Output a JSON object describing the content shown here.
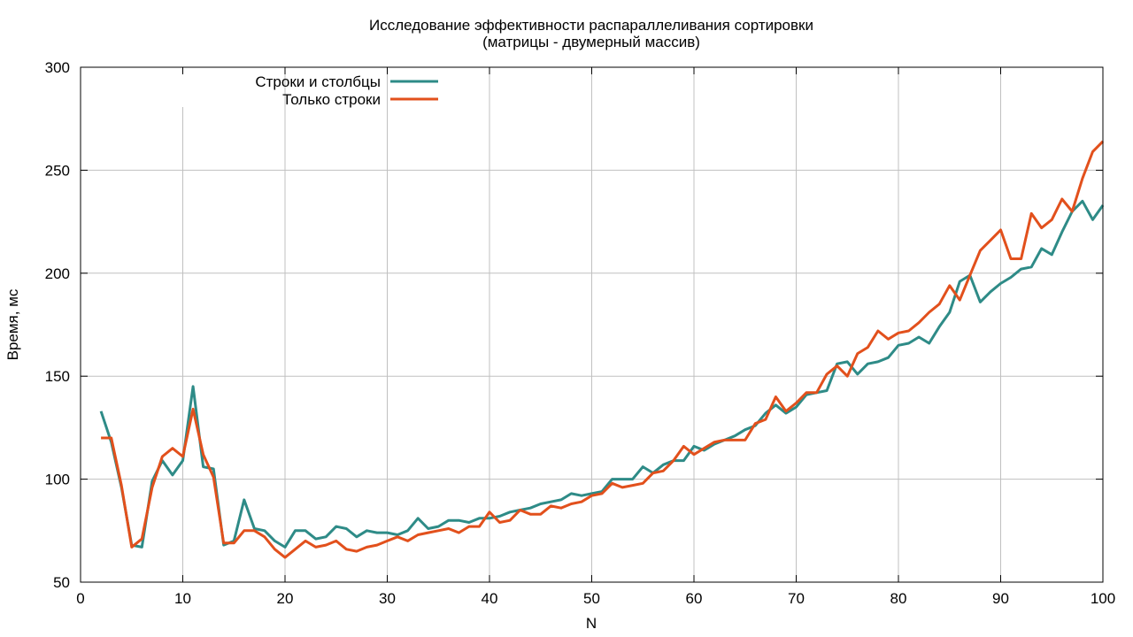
{
  "chart_data": {
    "type": "line",
    "title": "Исследование эффективности распараллеливания сортировки",
    "subtitle": "(матрицы - двумерный массив)",
    "xlabel": "N",
    "ylabel": "Время, мс",
    "xlim": [
      0,
      100
    ],
    "ylim": [
      50,
      300
    ],
    "xticks": [
      0,
      10,
      20,
      30,
      40,
      50,
      60,
      70,
      80,
      90,
      100
    ],
    "yticks": [
      50,
      100,
      150,
      200,
      250,
      300
    ],
    "grid": true,
    "legend_position": "top-left",
    "series": [
      {
        "name": "Строки и столбцы",
        "color": "#2e8b87",
        "x": [
          2,
          3,
          4,
          5,
          6,
          7,
          8,
          9,
          10,
          11,
          12,
          13,
          14,
          15,
          16,
          17,
          18,
          19,
          20,
          21,
          22,
          23,
          24,
          25,
          26,
          27,
          28,
          29,
          30,
          31,
          32,
          33,
          34,
          35,
          36,
          37,
          38,
          39,
          40,
          41,
          42,
          43,
          44,
          45,
          46,
          47,
          48,
          49,
          50,
          51,
          52,
          53,
          54,
          55,
          56,
          57,
          58,
          59,
          60,
          61,
          62,
          63,
          64,
          65,
          66,
          67,
          68,
          69,
          70,
          71,
          72,
          73,
          74,
          75,
          76,
          77,
          78,
          79,
          80,
          81,
          82,
          83,
          84,
          85,
          86,
          87,
          88,
          89,
          90,
          91,
          92,
          93,
          94,
          95,
          96,
          97,
          98,
          99,
          100
        ],
        "y": [
          133,
          118,
          96,
          68,
          67,
          99,
          109,
          102,
          109,
          145,
          106,
          105,
          68,
          70,
          90,
          76,
          75,
          70,
          67,
          75,
          75,
          71,
          72,
          77,
          76,
          72,
          75,
          74,
          74,
          73,
          75,
          81,
          76,
          77,
          80,
          80,
          79,
          81,
          81,
          82,
          84,
          85,
          86,
          88,
          89,
          90,
          93,
          92,
          93,
          94,
          100,
          100,
          100,
          106,
          103,
          107,
          109,
          109,
          116,
          114,
          117,
          119,
          121,
          124,
          126,
          132,
          136,
          132,
          135,
          141,
          142,
          143,
          156,
          157,
          151,
          156,
          157,
          159,
          165,
          166,
          169,
          166,
          174,
          181,
          196,
          199,
          186,
          191,
          195,
          198,
          202,
          203,
          212,
          209,
          220,
          230,
          235,
          226,
          233
        ]
      },
      {
        "name": "Только строки",
        "color": "#e2501c",
        "x": [
          2,
          3,
          4,
          5,
          6,
          7,
          8,
          9,
          10,
          11,
          12,
          13,
          14,
          15,
          16,
          17,
          18,
          19,
          20,
          21,
          22,
          23,
          24,
          25,
          26,
          27,
          28,
          29,
          30,
          31,
          32,
          33,
          34,
          35,
          36,
          37,
          38,
          39,
          40,
          41,
          42,
          43,
          44,
          45,
          46,
          47,
          48,
          49,
          50,
          51,
          52,
          53,
          54,
          55,
          56,
          57,
          58,
          59,
          60,
          61,
          62,
          63,
          64,
          65,
          66,
          67,
          68,
          69,
          70,
          71,
          72,
          73,
          74,
          75,
          76,
          77,
          78,
          79,
          80,
          81,
          82,
          83,
          84,
          85,
          86,
          87,
          88,
          89,
          90,
          91,
          92,
          93,
          94,
          95,
          96,
          97,
          98,
          99,
          100
        ],
        "y": [
          120,
          120,
          97,
          67,
          71,
          96,
          111,
          115,
          111,
          134,
          112,
          101,
          69,
          69,
          75,
          75,
          72,
          66,
          62,
          66,
          70,
          67,
          68,
          70,
          66,
          65,
          67,
          68,
          70,
          72,
          70,
          73,
          74,
          75,
          76,
          74,
          77,
          77,
          84,
          79,
          80,
          85,
          83,
          83,
          87,
          86,
          88,
          89,
          92,
          93,
          98,
          96,
          97,
          98,
          103,
          104,
          109,
          116,
          112,
          115,
          118,
          119,
          119,
          119,
          127,
          129,
          140,
          133,
          137,
          142,
          142,
          151,
          155,
          150,
          161,
          164,
          172,
          168,
          171,
          172,
          176,
          181,
          185,
          194,
          187,
          199,
          211,
          216,
          221,
          207,
          207,
          229,
          222,
          226,
          236,
          230,
          246,
          259,
          264
        ]
      }
    ]
  }
}
